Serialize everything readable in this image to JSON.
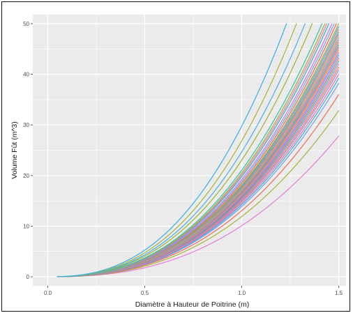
{
  "chart_data": {
    "type": "line",
    "title": "",
    "xlabel": "Diamètre à Hauteur de Poitrine (m)",
    "ylabel": "Volume Fût (m^3)",
    "xlim": [
      0,
      1.5
    ],
    "ylim": [
      0,
      50
    ],
    "x_ticks": [
      "0.0",
      "0.5",
      "1.0",
      "1.5"
    ],
    "y_ticks": [
      "0",
      "10",
      "20",
      "30",
      "40",
      "50"
    ],
    "grid": true,
    "legend": "none",
    "panel_background": "#ebebeb",
    "grid_color": "#ffffff",
    "x_start": 0.05,
    "x_end": 1.5,
    "curve_model": "volume = a × diameter^p",
    "exponent": 2.5,
    "curves": [
      {
        "color": "#e87ad6",
        "volume_at_1_5": 27.8
      },
      {
        "color": "#a9b33a",
        "volume_at_1_5": 32.8
      },
      {
        "color": "#ee6a50",
        "volume_at_1_5": 36.0
      },
      {
        "color": "#7c9cf0",
        "volume_at_1_5": 38.2
      },
      {
        "color": "#2fb8d8",
        "volume_at_1_5": 39.2
      },
      {
        "color": "#f06fa8",
        "volume_at_1_5": 40.0
      },
      {
        "color": "#9a8bf0",
        "volume_at_1_5": 40.8
      },
      {
        "color": "#f08a3c",
        "volume_at_1_5": 41.4
      },
      {
        "color": "#d873e8",
        "volume_at_1_5": 42.0
      },
      {
        "color": "#34c2a0",
        "volume_at_1_5": 42.6
      },
      {
        "color": "#e85f7a",
        "volume_at_1_5": 43.2
      },
      {
        "color": "#5aa8f0",
        "volume_at_1_5": 43.8
      },
      {
        "color": "#b67af0",
        "volume_at_1_5": 44.3
      },
      {
        "color": "#e8a23a",
        "volume_at_1_5": 44.8
      },
      {
        "color": "#f26a9c",
        "volume_at_1_5": 45.3
      },
      {
        "color": "#2cbccc",
        "volume_at_1_5": 45.8
      },
      {
        "color": "#ef7a5c",
        "volume_at_1_5": 46.3
      },
      {
        "color": "#8f9af2",
        "volume_at_1_5": 46.8
      },
      {
        "color": "#c9b12e",
        "volume_at_1_5": 47.3
      },
      {
        "color": "#e67ce0",
        "volume_at_1_5": 47.8
      },
      {
        "color": "#3cc48a",
        "volume_at_1_5": 48.3
      },
      {
        "color": "#f28080",
        "volume_at_1_5": 48.8
      },
      {
        "color": "#29b6e6",
        "volume_at_1_5": 49.4
      },
      {
        "color": "#b5a432",
        "volume_at_1_5": 50.0
      },
      {
        "color": "#ee6a50",
        "volume_at_1_5": 51.0
      },
      {
        "color": "#7aa8e8",
        "volume_at_1_5": 52.0
      },
      {
        "color": "#cc79e6",
        "volume_at_1_5": 53.0
      },
      {
        "color": "#2fb3c2",
        "volume_at_1_5": 54.5
      },
      {
        "color": "#f07aa8",
        "volume_at_1_5": 55.5
      },
      {
        "color": "#a3b23a",
        "volume_at_1_5": 56.5
      },
      {
        "color": "#36bfb0",
        "volume_at_1_5": 58.0
      },
      {
        "color": "#9cb033",
        "volume_at_1_5": 63.5
      },
      {
        "color": "#46aeea",
        "volume_at_1_5": 68.0
      },
      {
        "color": "#a6b23a",
        "volume_at_1_5": 74.0
      },
      {
        "color": "#34aee6",
        "volume_at_1_5": 82.0
      }
    ]
  }
}
